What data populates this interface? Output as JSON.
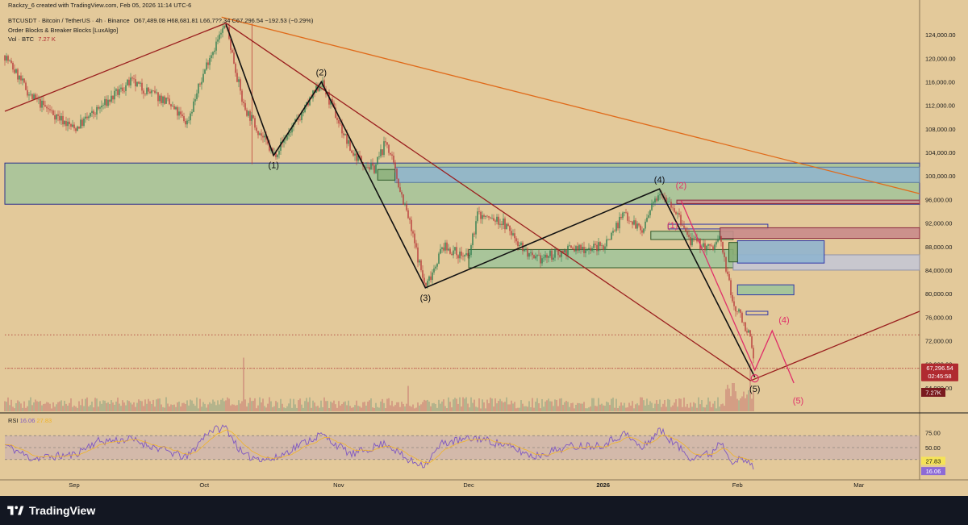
{
  "header": {
    "creator_line": "Rackzy_6 created with TradingView.com, Feb 05, 2026 11:14 UTC-6",
    "symbol": "BTCUSDT · Bitcoin / TetherUS · 4h · Binance",
    "ohlc": "O67,489.08  H68,681.81  L66,7??.34  C67,296.54  −192.53 (−0.29%)",
    "indicator1": "Order Blocks & Breaker Blocks [LuxAlgo]",
    "indicator2_name": "Vol · BTC",
    "indicator2_value": "7.27 K"
  },
  "chart_data": {
    "type": "candlestick",
    "title": "BTCUSDT · Bitcoin / TetherUS · 4h · Binance",
    "price_axis": {
      "ylim": [
        60000,
        128000
      ],
      "ticks": [
        "124,000.00",
        "120,000.00",
        "116,000.00",
        "112,000.00",
        "108,000.00",
        "104,000.00",
        "100,000.00",
        "96,000.00",
        "92,000.00",
        "88,000.00",
        "84,000.00",
        "80,000.00",
        "76,000.00",
        "72,000.00",
        "68,000.00",
        "64,000.00"
      ]
    },
    "time_axis": {
      "ticks": [
        {
          "label": "Sep",
          "date": "2025-09-01"
        },
        {
          "label": "Oct",
          "date": "2025-10-01"
        },
        {
          "label": "Nov",
          "date": "2025-11-01"
        },
        {
          "label": "Dec",
          "date": "2025-12-01"
        },
        {
          "label": "2026",
          "date": "2026-01-01"
        },
        {
          "label": "Feb",
          "date": "2026-02-01"
        },
        {
          "label": "Mar",
          "date": "2026-03-01"
        }
      ]
    },
    "price_path": [
      {
        "date": "2025-08-16",
        "price": 120500
      },
      {
        "date": "2025-08-22",
        "price": 113500
      },
      {
        "date": "2025-09-01",
        "price": 108000
      },
      {
        "date": "2025-09-06",
        "price": 111000
      },
      {
        "date": "2025-09-14",
        "price": 116000
      },
      {
        "date": "2025-09-22",
        "price": 112800
      },
      {
        "date": "2025-09-27",
        "price": 109000
      },
      {
        "date": "2025-10-02",
        "price": 120000
      },
      {
        "date": "2025-10-06",
        "price": 125800
      },
      {
        "date": "2025-10-10",
        "price": 112000
      },
      {
        "date": "2025-10-17",
        "price": 103500
      },
      {
        "date": "2025-10-23",
        "price": 110000
      },
      {
        "date": "2025-10-28",
        "price": 116000
      },
      {
        "date": "2025-11-04",
        "price": 104000
      },
      {
        "date": "2025-11-09",
        "price": 101000
      },
      {
        "date": "2025-11-12",
        "price": 106000
      },
      {
        "date": "2025-11-17",
        "price": 93000
      },
      {
        "date": "2025-11-21",
        "price": 81000
      },
      {
        "date": "2025-11-25",
        "price": 88000
      },
      {
        "date": "2025-12-01",
        "price": 86000
      },
      {
        "date": "2025-12-03",
        "price": 93500
      },
      {
        "date": "2025-12-09",
        "price": 92000
      },
      {
        "date": "2025-12-16",
        "price": 85500
      },
      {
        "date": "2025-12-24",
        "price": 87500
      },
      {
        "date": "2026-01-01",
        "price": 88000
      },
      {
        "date": "2026-01-06",
        "price": 93800
      },
      {
        "date": "2026-01-10",
        "price": 90500
      },
      {
        "date": "2026-01-14",
        "price": 97800
      },
      {
        "date": "2026-01-17",
        "price": 95000
      },
      {
        "date": "2026-01-21",
        "price": 89000
      },
      {
        "date": "2026-01-26",
        "price": 87600
      },
      {
        "date": "2026-01-28",
        "price": 89500
      },
      {
        "date": "2026-01-31",
        "price": 78000
      },
      {
        "date": "2026-02-02",
        "price": 76000
      },
      {
        "date": "2026-02-04",
        "price": 72000
      },
      {
        "date": "2026-02-05",
        "price": 67296.54
      }
    ],
    "wave_labels": [
      {
        "text": "(1)",
        "date": "2025-10-17",
        "price": 103500,
        "color": "#111111",
        "pos": "below"
      },
      {
        "text": "(2)",
        "date": "2025-10-28",
        "price": 116000,
        "color": "#111111",
        "pos": "above"
      },
      {
        "text": "(3)",
        "date": "2025-11-21",
        "price": 81000,
        "color": "#111111",
        "pos": "below"
      },
      {
        "text": "(4)",
        "date": "2026-01-14",
        "price": 97800,
        "color": "#111111",
        "pos": "above"
      },
      {
        "text": "(5)",
        "date": "2026-02-05",
        "price": 65500,
        "color": "#111111",
        "pos": "below"
      },
      {
        "text": "(1)",
        "date": "2026-01-17",
        "price": 91500,
        "color": "#e0306a",
        "pos": "mid"
      },
      {
        "text": "(2)",
        "date": "2026-01-19",
        "price": 96800,
        "color": "#e0306a",
        "pos": "above"
      },
      {
        "text": "(4)",
        "date": "2026-02-09",
        "price": 75000,
        "color": "#e0306a",
        "pos": "right"
      },
      {
        "text": "(5)",
        "date": "2026-02-15",
        "price": 63500,
        "color": "#e0306a",
        "pos": "below"
      }
    ],
    "black_wave": [
      {
        "date": "2025-10-06",
        "price": 125800
      },
      {
        "date": "2025-10-17",
        "price": 103500
      },
      {
        "date": "2025-10-28",
        "price": 116000
      },
      {
        "date": "2025-11-21",
        "price": 81000
      },
      {
        "date": "2026-01-14",
        "price": 97800
      },
      {
        "date": "2026-02-05",
        "price": 65800
      }
    ],
    "pink_projection": [
      {
        "date": "2026-01-19",
        "price": 95800
      },
      {
        "date": "2026-02-05",
        "price": 67000
      },
      {
        "date": "2026-02-09",
        "price": 73700
      },
      {
        "date": "2026-02-14",
        "price": 64800
      }
    ],
    "trendlines": [
      {
        "name": "red-trendline-top",
        "color": "#9a1e1e",
        "from": {
          "date": "2025-08-16",
          "price": 111000
        },
        "to": {
          "date": "2025-10-06",
          "price": 126000
        }
      },
      {
        "name": "red-trendline-down",
        "color": "#9a1e1e",
        "from": {
          "date": "2025-10-06",
          "price": 126000
        },
        "to": {
          "date": "2026-02-04",
          "price": 65200
        }
      },
      {
        "name": "red-trendline-up",
        "color": "#9a1e1e",
        "from": {
          "date": "2026-02-04",
          "price": 65200
        },
        "to": {
          "date": "2026-03-15",
          "price": 77000
        }
      },
      {
        "name": "orange-trendline",
        "color": "#e06a1a",
        "from": {
          "date": "2025-10-05",
          "price": 127000
        },
        "to": {
          "date": "2026-03-15",
          "price": 97000
        }
      }
    ],
    "zones": [
      {
        "name": "big-green-zone",
        "from": "2025-08-16",
        "to": "2026-03-15",
        "low": 95200,
        "high": 102200,
        "fill": "#9fc49a",
        "opacity": 0.8,
        "border": "#2b2f8c"
      },
      {
        "name": "blue-zone-right",
        "from": "2025-11-14",
        "to": "2026-03-15",
        "low": 98900,
        "high": 101500,
        "fill": "#8fb4cf",
        "opacity": 0.85,
        "border": "#5b7aa0"
      },
      {
        "name": "ob-small-green",
        "from": "2025-11-10",
        "to": "2025-11-14",
        "low": 99300,
        "high": 101100,
        "fill": "#86ad76",
        "opacity": 0.7,
        "border": "#2f5a2a"
      },
      {
        "name": "dec-green-zone",
        "from": "2025-12-01",
        "to": "2026-01-31",
        "low": 84400,
        "high": 87500,
        "fill": "#9fc49a",
        "opacity": 0.85,
        "border": "#2f5a2a"
      },
      {
        "name": "jan-green-zone",
        "from": "2026-01-12",
        "to": "2026-01-31",
        "low": 89200,
        "high": 90600,
        "fill": "#9fc49a",
        "opacity": 0.8,
        "border": "#2f5a2a"
      },
      {
        "name": "blue-outline-box",
        "from": "2026-01-16",
        "to": "2026-02-08",
        "low": 91000,
        "high": 91800,
        "fill": "none",
        "opacity": 1,
        "border": "#2f36a8"
      },
      {
        "name": "red-stripes-1",
        "from": "2026-01-18",
        "to": "2026-03-15",
        "low": 95300,
        "high": 95900,
        "fill": "#c98b8b",
        "opacity": 0.9,
        "border": "#8c2a40"
      },
      {
        "name": "red-stripes-2",
        "from": "2026-01-28",
        "to": "2026-03-15",
        "low": 89400,
        "high": 91200,
        "fill": "#c98b8b",
        "opacity": 0.9,
        "border": "#8c2a40"
      },
      {
        "name": "grey-zone",
        "from": "2026-01-31",
        "to": "2026-03-15",
        "low": 84000,
        "high": 86600,
        "fill": "#c4c6d4",
        "opacity": 0.9,
        "border": "#9093aa"
      },
      {
        "name": "blue-box-mid",
        "from": "2026-02-01",
        "to": "2026-02-21",
        "low": 85200,
        "high": 89000,
        "fill": "#8fb4cf",
        "opacity": 0.9,
        "border": "#2f36a8"
      },
      {
        "name": "ob-green-feb1",
        "from": "2026-01-30",
        "to": "2026-02-01",
        "low": 85400,
        "high": 88700,
        "fill": "#86ad76",
        "opacity": 0.9,
        "border": "#2f5a2a"
      },
      {
        "name": "ob-green-feb2",
        "from": "2026-02-01",
        "to": "2026-02-14",
        "low": 79800,
        "high": 81500,
        "fill": "#9fc49a",
        "opacity": 0.9,
        "border": "#2f36a8"
      },
      {
        "name": "ob-small-feb3",
        "from": "2026-02-03",
        "to": "2026-02-08",
        "low": 76400,
        "high": 77000,
        "fill": "none",
        "opacity": 1,
        "border": "#2f36a8"
      }
    ],
    "dotted_levels": [
      {
        "name": "dotted-72k",
        "price": 73000
      },
      {
        "name": "dotted-67k",
        "price": 67300
      }
    ],
    "vertical_markers": [
      {
        "name": "oct-red-marker",
        "date": "2025-10-12",
        "from": 102000,
        "to": 126000
      }
    ],
    "price_labels": {
      "current": {
        "price": 67296.54,
        "text": "67,296.54",
        "countdown": "02:45:58",
        "color": "#b02a30"
      },
      "volume": {
        "text": "7.27K",
        "color": "#7a1a1e"
      }
    },
    "rsi": {
      "label": "RSI",
      "value_text": "16.06",
      "ma_text": "27.83",
      "ylim": [
        0,
        100
      ],
      "ticks": [
        "75.00",
        "50.00"
      ],
      "band": [
        30,
        70
      ],
      "path": [
        {
          "date": "2025-08-16",
          "value": 55
        },
        {
          "date": "2025-08-22",
          "value": 32
        },
        {
          "date": "2025-09-01",
          "value": 38
        },
        {
          "date": "2025-09-06",
          "value": 60
        },
        {
          "date": "2025-09-14",
          "value": 64
        },
        {
          "date": "2025-09-22",
          "value": 45
        },
        {
          "date": "2025-09-27",
          "value": 33
        },
        {
          "date": "2025-10-02",
          "value": 78
        },
        {
          "date": "2025-10-06",
          "value": 84
        },
        {
          "date": "2025-10-10",
          "value": 36
        },
        {
          "date": "2025-10-17",
          "value": 30
        },
        {
          "date": "2025-10-23",
          "value": 55
        },
        {
          "date": "2025-10-28",
          "value": 72
        },
        {
          "date": "2025-11-04",
          "value": 38
        },
        {
          "date": "2025-11-12",
          "value": 58
        },
        {
          "date": "2025-11-17",
          "value": 28
        },
        {
          "date": "2025-11-21",
          "value": 22
        },
        {
          "date": "2025-11-25",
          "value": 58
        },
        {
          "date": "2025-12-03",
          "value": 66
        },
        {
          "date": "2025-12-09",
          "value": 55
        },
        {
          "date": "2025-12-16",
          "value": 35
        },
        {
          "date": "2025-12-24",
          "value": 52
        },
        {
          "date": "2026-01-01",
          "value": 55
        },
        {
          "date": "2026-01-06",
          "value": 74
        },
        {
          "date": "2026-01-10",
          "value": 48
        },
        {
          "date": "2026-01-14",
          "value": 80
        },
        {
          "date": "2026-01-17",
          "value": 60
        },
        {
          "date": "2026-01-21",
          "value": 34
        },
        {
          "date": "2026-01-26",
          "value": 40
        },
        {
          "date": "2026-01-28",
          "value": 62
        },
        {
          "date": "2026-01-31",
          "value": 26
        },
        {
          "date": "2026-02-02",
          "value": 30
        },
        {
          "date": "2026-02-04",
          "value": 22
        },
        {
          "date": "2026-02-05",
          "value": 16
        }
      ]
    },
    "volume": {
      "scale_max": 20,
      "spikes": [
        {
          "date": "2025-10-10",
          "value": 19
        },
        {
          "date": "2025-11-17",
          "value": 9
        },
        {
          "date": "2026-01-31",
          "value": 10
        },
        {
          "date": "2026-02-04",
          "value": 17
        }
      ]
    }
  },
  "footer": {
    "brand": "TradingView"
  }
}
